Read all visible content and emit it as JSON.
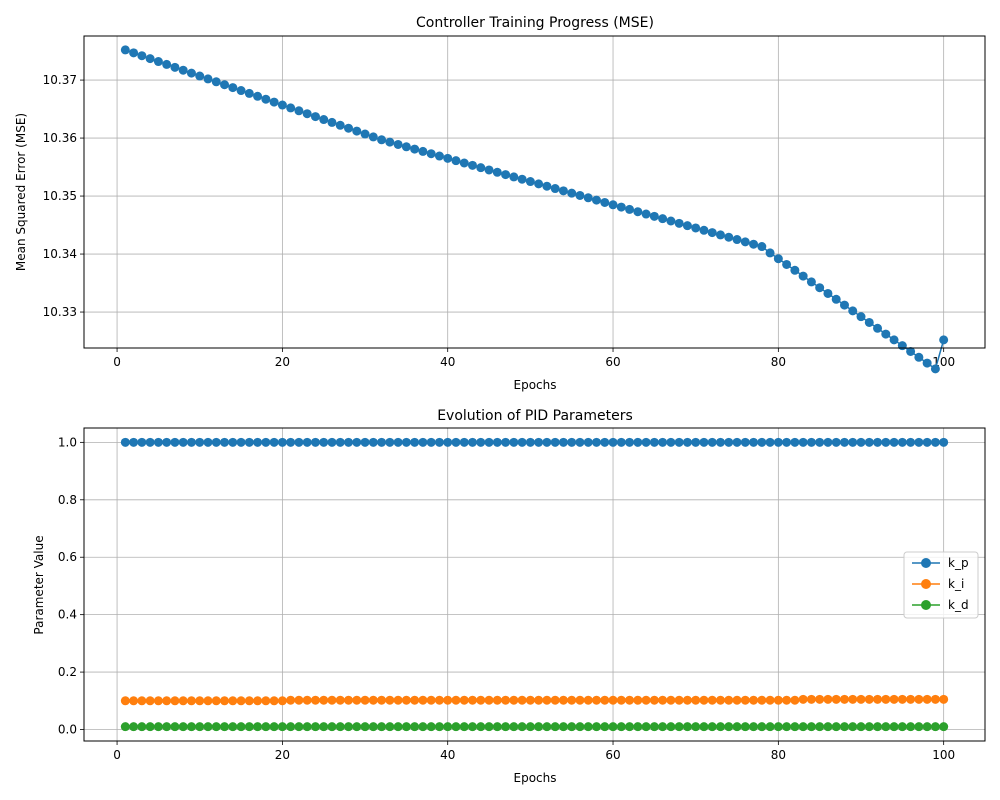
{
  "chart_data": [
    {
      "type": "scatter",
      "title": "Controller Training Progress (MSE)",
      "xlabel": "Epochs",
      "ylabel": "Mean Squared Error (MSE)",
      "xlim": [
        -4,
        105
      ],
      "ylim": [
        10.3238,
        10.3776
      ],
      "x_ticks": [
        0,
        20,
        40,
        60,
        80,
        100
      ],
      "x_tick_labels": [
        "0",
        "20",
        "40",
        "60",
        "80",
        "100"
      ],
      "y_ticks": [
        10.33,
        10.34,
        10.35,
        10.36,
        10.37
      ],
      "y_tick_labels": [
        "10.33",
        "10.34",
        "10.35",
        "10.36",
        "10.37"
      ],
      "grid": true,
      "legend": "none",
      "series": [
        {
          "color": "#1f77b4",
          "x": [
            1,
            2,
            3,
            4,
            5,
            6,
            7,
            8,
            9,
            10,
            11,
            12,
            13,
            14,
            15,
            16,
            17,
            18,
            19,
            20,
            21,
            22,
            23,
            24,
            25,
            26,
            27,
            28,
            29,
            30,
            31,
            32,
            33,
            34,
            35,
            36,
            37,
            38,
            39,
            40,
            41,
            42,
            43,
            44,
            45,
            46,
            47,
            48,
            49,
            50,
            51,
            52,
            53,
            54,
            55,
            56,
            57,
            58,
            59,
            60,
            61,
            62,
            63,
            64,
            65,
            66,
            67,
            68,
            69,
            70,
            71,
            72,
            73,
            74,
            75,
            76,
            77,
            78,
            79,
            80,
            81,
            82,
            83,
            84,
            85,
            86,
            87,
            88,
            89,
            90,
            91,
            92,
            93,
            94,
            95,
            96,
            97,
            98,
            99,
            100
          ],
          "y": [
            10.3752,
            10.3747,
            10.3742,
            10.3737,
            10.3732,
            10.3727,
            10.3722,
            10.3717,
            10.3712,
            10.3707,
            10.3702,
            10.3697,
            10.3692,
            10.3687,
            10.3682,
            10.3677,
            10.3672,
            10.3667,
            10.3662,
            10.3657,
            10.3652,
            10.3647,
            10.3642,
            10.3637,
            10.3632,
            10.3627,
            10.3622,
            10.3617,
            10.3612,
            10.3607,
            10.3602,
            10.3597,
            10.3593,
            10.3589,
            10.3585,
            10.3581,
            10.3577,
            10.3573,
            10.3569,
            10.3565,
            10.3561,
            10.3557,
            10.3553,
            10.3549,
            10.3545,
            10.3541,
            10.3537,
            10.3533,
            10.3529,
            10.3525,
            10.3521,
            10.3517,
            10.3513,
            10.3509,
            10.3505,
            10.3501,
            10.3497,
            10.3493,
            10.3489,
            10.3485,
            10.3481,
            10.3477,
            10.3473,
            10.3469,
            10.3465,
            10.3461,
            10.3457,
            10.3453,
            10.3449,
            10.3445,
            10.3441,
            10.3437,
            10.3433,
            10.3429,
            10.3425,
            10.3421,
            10.3417,
            10.3413,
            10.3402,
            10.3392,
            10.3382,
            10.3372,
            10.3362,
            10.3352,
            10.3342,
            10.3332,
            10.3322,
            10.3312,
            10.3302,
            10.3292,
            10.3282,
            10.3272,
            10.3262,
            10.3252,
            10.3242,
            10.3232,
            10.3222,
            10.3212,
            10.3202,
            10.3252
          ]
        }
      ]
    },
    {
      "type": "line",
      "title": "Evolution of PID Parameters",
      "xlabel": "Epochs",
      "ylabel": "Parameter Value",
      "xlim": [
        -4,
        105
      ],
      "ylim": [
        -0.04,
        1.05
      ],
      "x_ticks": [
        0,
        20,
        40,
        60,
        80,
        100
      ],
      "x_tick_labels": [
        "0",
        "20",
        "40",
        "60",
        "80",
        "100"
      ],
      "y_ticks": [
        0.0,
        0.2,
        0.4,
        0.6,
        0.8,
        1.0
      ],
      "y_tick_labels": [
        "0.0",
        "0.2",
        "0.4",
        "0.6",
        "0.8",
        "1.0"
      ],
      "grid": true,
      "legend": "center-right",
      "x_start": 1,
      "x_end": 100,
      "series": [
        {
          "name": "k_p",
          "color": "#1f77b4",
          "values": [
            1,
            1,
            1,
            1,
            1,
            1,
            1,
            1,
            1,
            1,
            1,
            1,
            1,
            1,
            1,
            1,
            1,
            1,
            1,
            1,
            1,
            1,
            1,
            1,
            1,
            1,
            1,
            1,
            1,
            1,
            1,
            1,
            1,
            1,
            1,
            1,
            1,
            1,
            1,
            1,
            1,
            1,
            1,
            1,
            1,
            1,
            1,
            1,
            1,
            1,
            1,
            1,
            1,
            1,
            1,
            1,
            1,
            1,
            1,
            1,
            1,
            1,
            1,
            1,
            1,
            1,
            1,
            1,
            1,
            1,
            1,
            1,
            1,
            1,
            1,
            1,
            1,
            1,
            1,
            1,
            1,
            1,
            1,
            1,
            1,
            1,
            1,
            1,
            1,
            1,
            1,
            1,
            1,
            1,
            1,
            1,
            1,
            1,
            1,
            1
          ]
        },
        {
          "name": "k_i",
          "color": "#ff7f0e",
          "values": [
            0.1,
            0.1,
            0.1,
            0.1,
            0.1,
            0.1,
            0.1,
            0.1,
            0.1,
            0.1,
            0.1,
            0.1,
            0.1,
            0.1,
            0.1,
            0.1,
            0.1,
            0.1,
            0.1,
            0.1,
            0.102,
            0.102,
            0.102,
            0.102,
            0.102,
            0.102,
            0.102,
            0.102,
            0.102,
            0.102,
            0.102,
            0.102,
            0.102,
            0.102,
            0.102,
            0.102,
            0.102,
            0.102,
            0.102,
            0.102,
            0.102,
            0.102,
            0.102,
            0.102,
            0.102,
            0.102,
            0.102,
            0.102,
            0.102,
            0.102,
            0.102,
            0.102,
            0.102,
            0.102,
            0.102,
            0.102,
            0.102,
            0.102,
            0.102,
            0.102,
            0.102,
            0.102,
            0.102,
            0.102,
            0.102,
            0.102,
            0.102,
            0.102,
            0.102,
            0.102,
            0.102,
            0.102,
            0.102,
            0.102,
            0.102,
            0.102,
            0.102,
            0.102,
            0.102,
            0.102,
            0.102,
            0.102,
            0.105,
            0.105,
            0.105,
            0.105,
            0.105,
            0.105,
            0.105,
            0.105,
            0.105,
            0.105,
            0.105,
            0.105,
            0.105,
            0.105,
            0.105,
            0.105,
            0.105,
            0.105
          ]
        },
        {
          "name": "k_d",
          "color": "#2ca02c",
          "values": [
            0.01,
            0.01,
            0.01,
            0.01,
            0.01,
            0.01,
            0.01,
            0.01,
            0.01,
            0.01,
            0.01,
            0.01,
            0.01,
            0.01,
            0.01,
            0.01,
            0.01,
            0.01,
            0.01,
            0.01,
            0.01,
            0.01,
            0.01,
            0.01,
            0.01,
            0.01,
            0.01,
            0.01,
            0.01,
            0.01,
            0.01,
            0.01,
            0.01,
            0.01,
            0.01,
            0.01,
            0.01,
            0.01,
            0.01,
            0.01,
            0.01,
            0.01,
            0.01,
            0.01,
            0.01,
            0.01,
            0.01,
            0.01,
            0.01,
            0.01,
            0.01,
            0.01,
            0.01,
            0.01,
            0.01,
            0.01,
            0.01,
            0.01,
            0.01,
            0.01,
            0.01,
            0.01,
            0.01,
            0.01,
            0.01,
            0.01,
            0.01,
            0.01,
            0.01,
            0.01,
            0.01,
            0.01,
            0.01,
            0.01,
            0.01,
            0.01,
            0.01,
            0.01,
            0.01,
            0.01,
            0.01,
            0.01,
            0.01,
            0.01,
            0.01,
            0.01,
            0.01,
            0.01,
            0.01,
            0.01,
            0.01,
            0.01,
            0.01,
            0.01,
            0.01,
            0.01,
            0.01,
            0.01,
            0.01,
            0.01
          ]
        }
      ]
    }
  ]
}
